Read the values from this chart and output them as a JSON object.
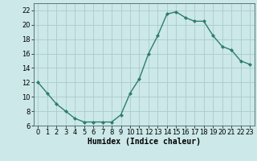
{
  "x": [
    0,
    1,
    2,
    3,
    4,
    5,
    6,
    7,
    8,
    9,
    10,
    11,
    12,
    13,
    14,
    15,
    16,
    17,
    18,
    19,
    20,
    21,
    22,
    23
  ],
  "y": [
    12.0,
    10.5,
    9.0,
    8.0,
    7.0,
    6.5,
    6.5,
    6.5,
    6.5,
    7.5,
    10.5,
    12.5,
    16.0,
    18.5,
    21.5,
    21.8,
    21.0,
    20.5,
    20.5,
    18.5,
    17.0,
    16.5,
    15.0,
    14.5
  ],
  "line_color": "#2d7d6e",
  "marker": "D",
  "marker_size": 2,
  "bg_color": "#cce8e8",
  "grid_color": "#aacccc",
  "xlabel": "Humidex (Indice chaleur)",
  "xlabel_fontsize": 7,
  "ylim": [
    6,
    23
  ],
  "xlim": [
    -0.5,
    23.5
  ],
  "yticks": [
    6,
    8,
    10,
    12,
    14,
    16,
    18,
    20,
    22
  ],
  "xticks": [
    0,
    1,
    2,
    3,
    4,
    5,
    6,
    7,
    8,
    9,
    10,
    11,
    12,
    13,
    14,
    15,
    16,
    17,
    18,
    19,
    20,
    21,
    22,
    23
  ],
  "tick_fontsize": 6,
  "line_width": 1.0
}
